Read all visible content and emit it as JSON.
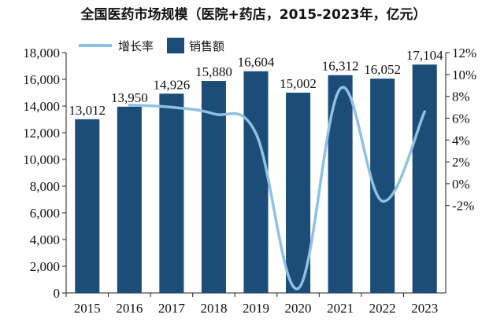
{
  "chart_data": {
    "type": "bar",
    "title": "全国医药市场规模（医院+药店，2015-2023年，亿元）",
    "categories": [
      "2015",
      "2016",
      "2017",
      "2018",
      "2019",
      "2020",
      "2021",
      "2022",
      "2023"
    ],
    "series": [
      {
        "name": "销售额",
        "type": "bar",
        "axis": "left",
        "values": [
          13012,
          13950,
          14926,
          15880,
          16604,
          15002,
          16312,
          16052,
          17104
        ],
        "value_labels": [
          "13,012",
          "13,950",
          "14,926",
          "15,880",
          "16,604",
          "15,002",
          "16,312",
          "16,052",
          "17,104"
        ],
        "color": "#1b4d78"
      },
      {
        "name": "增长率",
        "type": "line",
        "axis": "right",
        "values": [
          null,
          7.2,
          7.0,
          6.4,
          4.6,
          -9.6,
          8.7,
          -1.6,
          6.6
        ],
        "color": "#8fc1e3"
      }
    ],
    "y_left": {
      "min": 0,
      "max": 18000,
      "ticks": [
        0,
        2000,
        4000,
        6000,
        8000,
        10000,
        12000,
        14000,
        16000,
        18000
      ],
      "tick_labels": [
        "0",
        "2,000",
        "4,000",
        "6,000",
        "8,000",
        "10,000",
        "12,000",
        "14,000",
        "16,000",
        "18,000"
      ]
    },
    "y_right": {
      "min": -10,
      "max": 12,
      "ticks": [
        -2,
        0,
        2,
        4,
        6,
        8,
        10,
        12
      ],
      "tick_labels": [
        "-2%",
        "0%",
        "2%",
        "4%",
        "6%",
        "8%",
        "10%",
        "12%"
      ]
    },
    "legend": {
      "placement": "top-left"
    },
    "grid": false
  }
}
